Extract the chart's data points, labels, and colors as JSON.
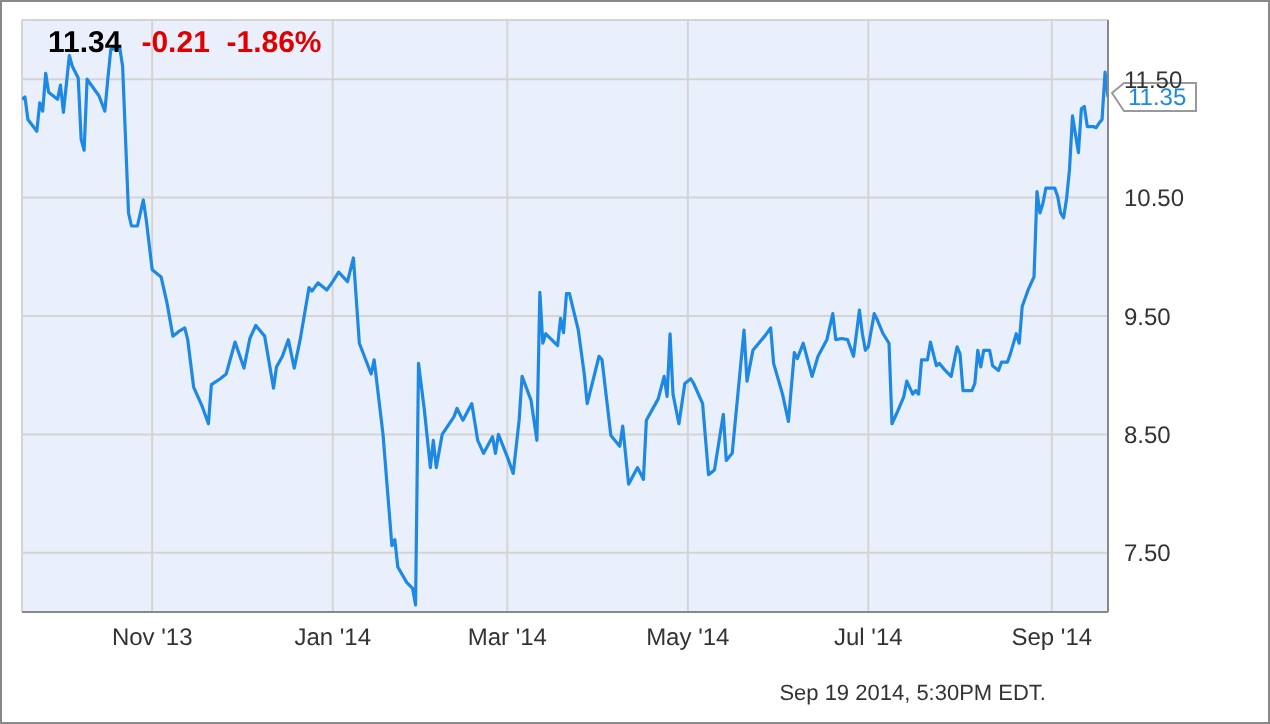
{
  "chart_data": {
    "type": "line",
    "title": "11.34",
    "subtitle": "-0.21  -1.86%",
    "annotations": [
      {
        "text": "11.35",
        "x": "2014-09-20",
        "y": 11.35
      },
      "Sep 19 2014, 5:30PM EDT."
    ],
    "x": [
      "2013-09-18",
      "2013-09-19",
      "2013-09-20",
      "2013-09-23",
      "2013-09-24",
      "2013-09-25",
      "2013-09-26",
      "2013-09-27",
      "2013-09-30",
      "2013-10-01",
      "2013-10-02",
      "2013-10-04",
      "2013-10-05",
      "2013-10-07",
      "2013-10-08",
      "2013-10-09",
      "2013-10-10",
      "2013-10-12",
      "2013-10-14",
      "2013-10-16",
      "2013-10-17",
      "2013-10-18",
      "2013-10-21",
      "2013-10-22",
      "2013-10-24",
      "2013-10-25",
      "2013-10-27",
      "2013-10-29",
      "2013-10-30",
      "2013-11-01",
      "2013-11-04",
      "2013-11-06",
      "2013-11-08",
      "2013-11-10",
      "2013-11-12",
      "2013-11-13",
      "2013-11-15",
      "2013-11-18",
      "2013-11-20",
      "2013-11-21",
      "2013-11-24",
      "2013-11-26",
      "2013-11-29",
      "2013-12-02",
      "2013-12-04",
      "2013-12-06",
      "2013-12-09",
      "2013-12-12",
      "2013-12-13",
      "2013-12-15",
      "2013-12-17",
      "2013-12-19",
      "2013-12-21",
      "2013-12-24",
      "2013-12-25",
      "2013-12-27",
      "2013-12-30",
      "2014-01-01",
      "2014-01-03",
      "2014-01-06",
      "2014-01-08",
      "2014-01-10",
      "2014-01-14",
      "2014-01-15",
      "2014-01-18",
      "2014-01-21",
      "2014-01-22",
      "2014-01-23",
      "2014-01-26",
      "2014-01-28",
      "2014-01-29",
      "2014-01-30",
      "2014-02-01",
      "2014-02-03",
      "2014-02-04",
      "2014-02-05",
      "2014-02-07",
      "2014-02-11",
      "2014-02-12",
      "2014-02-14",
      "2014-02-17",
      "2014-02-19",
      "2014-02-21",
      "2014-02-24",
      "2014-02-25",
      "2014-02-26",
      "2014-03-01",
      "2014-03-03",
      "2014-03-05",
      "2014-03-06",
      "2014-03-09",
      "2014-03-11",
      "2014-03-12",
      "2014-03-13",
      "2014-03-14",
      "2014-03-18",
      "2014-03-19",
      "2014-03-20",
      "2014-03-21",
      "2014-03-22",
      "2014-03-25",
      "2014-03-27",
      "2014-03-28",
      "2014-04-01",
      "2014-04-02",
      "2014-04-05",
      "2014-04-08",
      "2014-04-09",
      "2014-04-11",
      "2014-04-14",
      "2014-04-16",
      "2014-04-17",
      "2014-04-21",
      "2014-04-23",
      "2014-04-24",
      "2014-04-25",
      "2014-04-26",
      "2014-04-28",
      "2014-04-30",
      "2014-05-02",
      "2014-05-03",
      "2014-05-06",
      "2014-05-08",
      "2014-05-10",
      "2014-05-13",
      "2014-05-14",
      "2014-05-16",
      "2014-05-20",
      "2014-05-21",
      "2014-05-23",
      "2014-05-27",
      "2014-05-29",
      "2014-05-30",
      "2014-06-02",
      "2014-06-04",
      "2014-06-06",
      "2014-06-07",
      "2014-06-09",
      "2014-06-12",
      "2014-06-14",
      "2014-06-17",
      "2014-06-19",
      "2014-06-20",
      "2014-06-22",
      "2014-06-24",
      "2014-06-26",
      "2014-06-28",
      "2014-06-29",
      "2014-06-30",
      "2014-07-01",
      "2014-07-03",
      "2014-07-04",
      "2014-07-06",
      "2014-07-08",
      "2014-07-09",
      "2014-07-11",
      "2014-07-13",
      "2014-07-14",
      "2014-07-16",
      "2014-07-17",
      "2014-07-18",
      "2014-07-19",
      "2014-07-21",
      "2014-07-22",
      "2014-07-24",
      "2014-07-25",
      "2014-07-27",
      "2014-07-29",
      "2014-07-31",
      "2014-08-01",
      "2014-08-02",
      "2014-08-05",
      "2014-08-06",
      "2014-08-07",
      "2014-08-08",
      "2014-08-09",
      "2014-08-11",
      "2014-08-12",
      "2014-08-14",
      "2014-08-15",
      "2014-08-17",
      "2014-08-18",
      "2014-08-20",
      "2014-08-21",
      "2014-08-22",
      "2014-08-24",
      "2014-08-26",
      "2014-08-27",
      "2014-08-28",
      "2014-08-29",
      "2014-08-30",
      "2014-09-02",
      "2014-09-03",
      "2014-09-04",
      "2014-09-05",
      "2014-09-06",
      "2014-09-07",
      "2014-09-08",
      "2014-09-10",
      "2014-09-11",
      "2014-09-12",
      "2014-09-13",
      "2014-09-15",
      "2014-09-16",
      "2014-09-17",
      "2014-09-18",
      "2014-09-19",
      "2014-09-20"
    ],
    "series": [
      {
        "color": "#1e88e5",
        "values": [
          11.33,
          11.35,
          11.16,
          11.06,
          11.3,
          11.23,
          11.55,
          11.39,
          11.33,
          11.45,
          11.22,
          11.7,
          11.61,
          11.51,
          10.99,
          10.9,
          11.5,
          11.43,
          11.36,
          11.23,
          11.5,
          11.75,
          11.77,
          11.61,
          10.37,
          10.26,
          10.26,
          10.48,
          10.31,
          9.89,
          9.83,
          9.61,
          9.33,
          9.37,
          9.4,
          9.3,
          8.9,
          8.73,
          8.59,
          8.92,
          8.97,
          9.01,
          9.28,
          9.06,
          9.31,
          9.42,
          9.33,
          8.89,
          9.07,
          9.16,
          9.3,
          9.06,
          9.3,
          9.74,
          9.71,
          9.78,
          9.72,
          9.79,
          9.87,
          9.79,
          9.99,
          9.27,
          9.01,
          9.13,
          8.5,
          7.56,
          7.61,
          7.38,
          7.25,
          7.2,
          7.06,
          9.1,
          8.7,
          8.22,
          8.45,
          8.22,
          8.5,
          8.65,
          8.72,
          8.62,
          8.76,
          8.45,
          8.34,
          8.48,
          8.34,
          8.5,
          8.31,
          8.17,
          8.62,
          8.99,
          8.79,
          8.45,
          9.7,
          9.27,
          9.35,
          9.25,
          9.48,
          9.36,
          9.69,
          9.69,
          9.38,
          9.01,
          8.76,
          9.16,
          9.13,
          8.49,
          8.4,
          8.57,
          8.08,
          8.22,
          8.12,
          8.62,
          8.8,
          8.99,
          8.82,
          9.35,
          8.84,
          8.59,
          8.93,
          8.97,
          8.93,
          8.76,
          8.16,
          8.2,
          8.67,
          8.28,
          8.34,
          9.38,
          8.95,
          9.21,
          9.33,
          9.4,
          9.1,
          8.84,
          8.61,
          9.19,
          9.14,
          9.27,
          8.99,
          9.16,
          9.3,
          9.52,
          9.3,
          9.31,
          9.3,
          9.16,
          9.55,
          9.35,
          9.21,
          9.24,
          9.52,
          9.47,
          9.35,
          9.27,
          8.59,
          8.7,
          8.82,
          8.95,
          8.84,
          8.87,
          8.84,
          9.13,
          9.13,
          9.28,
          9.08,
          9.1,
          9.04,
          8.99,
          9.24,
          9.18,
          8.87,
          8.87,
          8.93,
          9.21,
          9.07,
          9.21,
          9.21,
          9.08,
          9.04,
          9.11,
          9.11,
          9.18,
          9.35,
          9.27,
          9.58,
          9.72,
          9.83,
          10.55,
          10.37,
          10.45,
          10.58,
          10.58,
          10.51,
          10.37,
          10.33,
          10.49,
          10.74,
          11.19,
          10.88,
          11.25,
          11.27,
          11.1,
          11.1,
          11.09,
          11.13,
          11.16,
          11.56,
          11.35
        ]
      }
    ],
    "xlim": [
      "2013-09-18",
      "2014-09-20"
    ],
    "xticks": [
      {
        "value": "2013-11-01",
        "label": "Nov '13"
      },
      {
        "value": "2014-01-01",
        "label": "Jan '14"
      },
      {
        "value": "2014-03-01",
        "label": "Mar '14"
      },
      {
        "value": "2014-05-01",
        "label": "May '14"
      },
      {
        "value": "2014-07-01",
        "label": "Jul '14"
      },
      {
        "value": "2014-09-01",
        "label": "Sep '14"
      }
    ],
    "ylim": [
      7,
      12
    ],
    "yticks": [
      {
        "value": 7.5,
        "label": "7.50"
      },
      {
        "value": 8.5,
        "label": "8.50"
      },
      {
        "value": 9.5,
        "label": "9.50"
      },
      {
        "value": 10.5,
        "label": "10.50"
      },
      {
        "value": 11.5,
        "label": "11.50"
      }
    ],
    "grid": true,
    "legend": false,
    "marker": "none",
    "line_style": "solid"
  }
}
